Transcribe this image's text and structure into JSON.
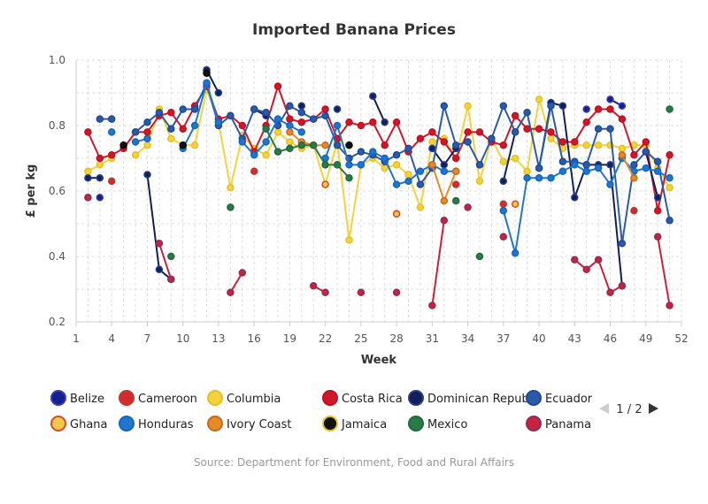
{
  "chart_data": {
    "type": "line",
    "title": "Imported Banana Prices",
    "xlabel": "Week",
    "ylabel": "£ per kg",
    "xlim": [
      1,
      52
    ],
    "ylim": [
      0.2,
      1.0
    ],
    "x_ticks": [
      "1",
      "4",
      "7",
      "10",
      "13",
      "16",
      "19",
      "22",
      "25",
      "28",
      "31",
      "34",
      "37",
      "40",
      "43",
      "46",
      "49",
      "52"
    ],
    "y_ticks": [
      "0.2",
      "0.4",
      "0.6",
      "0.8",
      "1.0"
    ],
    "grid": true,
    "legend_position": "bottom",
    "series": [
      {
        "name": "Belize",
        "color": "#14208f",
        "border": "#3b3bb0",
        "points": [
          [
            3,
            0.58
          ],
          [
            12,
            0.97
          ],
          [
            44,
            0.85
          ],
          [
            46,
            0.88
          ],
          [
            47,
            0.86
          ]
        ]
      },
      {
        "name": "Cameroon",
        "color": "#d12b32",
        "border": "#c0392b",
        "points": [
          [
            2,
            0.58
          ],
          [
            4,
            0.63
          ],
          [
            16,
            0.66
          ],
          [
            28,
            0.53
          ],
          [
            33,
            0.62
          ],
          [
            37,
            0.56
          ],
          [
            48,
            0.54
          ]
        ]
      },
      {
        "name": "Columbia",
        "color": "#f3d23d",
        "border": "#e6c11e",
        "points": [
          [
            2,
            0.66
          ],
          [
            3,
            0.68
          ],
          [
            4,
            0.7
          ],
          [
            6,
            0.71
          ],
          [
            7,
            0.74
          ],
          [
            8,
            0.85
          ],
          [
            9,
            0.76
          ],
          [
            10,
            0.74
          ],
          [
            11,
            0.74
          ],
          [
            12,
            0.91
          ],
          [
            13,
            0.81
          ],
          [
            14,
            0.61
          ],
          [
            15,
            0.77
          ],
          [
            16,
            0.73
          ],
          [
            17,
            0.71
          ],
          [
            18,
            0.78
          ],
          [
            19,
            0.75
          ],
          [
            20,
            0.73
          ],
          [
            21,
            0.74
          ],
          [
            22,
            0.62
          ],
          [
            23,
            0.75
          ],
          [
            24,
            0.45
          ],
          [
            25,
            0.68
          ],
          [
            26,
            0.7
          ],
          [
            27,
            0.67
          ],
          [
            28,
            0.68
          ],
          [
            29,
            0.65
          ],
          [
            30,
            0.55
          ],
          [
            31,
            0.75
          ],
          [
            32,
            0.76
          ],
          [
            33,
            0.7
          ],
          [
            34,
            0.86
          ],
          [
            35,
            0.63
          ],
          [
            36,
            0.76
          ],
          [
            37,
            0.69
          ],
          [
            38,
            0.7
          ],
          [
            39,
            0.66
          ],
          [
            40,
            0.88
          ],
          [
            41,
            0.76
          ],
          [
            42,
            0.73
          ],
          [
            43,
            0.74
          ],
          [
            44,
            0.74
          ],
          [
            45,
            0.74
          ],
          [
            46,
            0.74
          ],
          [
            47,
            0.73
          ],
          [
            48,
            0.74
          ],
          [
            49,
            0.74
          ],
          [
            50,
            0.67
          ],
          [
            51,
            0.61
          ]
        ]
      },
      {
        "name": "Costa Rica",
        "color": "#d0172a",
        "border": "#c01020",
        "points": [
          [
            2,
            0.78
          ],
          [
            3,
            0.7
          ],
          [
            4,
            0.71
          ],
          [
            5,
            0.73
          ],
          [
            6,
            0.78
          ],
          [
            7,
            0.78
          ],
          [
            8,
            0.83
          ],
          [
            9,
            0.84
          ],
          [
            10,
            0.79
          ],
          [
            11,
            0.86
          ],
          [
            12,
            0.92
          ],
          [
            13,
            0.82
          ],
          [
            14,
            0.83
          ],
          [
            15,
            0.8
          ],
          [
            16,
            0.72
          ],
          [
            17,
            0.8
          ],
          [
            18,
            0.92
          ],
          [
            19,
            0.82
          ],
          [
            20,
            0.81
          ],
          [
            21,
            0.82
          ],
          [
            22,
            0.85
          ],
          [
            23,
            0.76
          ],
          [
            24,
            0.81
          ],
          [
            25,
            0.8
          ],
          [
            26,
            0.81
          ],
          [
            27,
            0.74
          ],
          [
            28,
            0.81
          ],
          [
            29,
            0.72
          ],
          [
            30,
            0.76
          ],
          [
            31,
            0.78
          ],
          [
            32,
            0.75
          ],
          [
            33,
            0.7
          ],
          [
            34,
            0.78
          ],
          [
            35,
            0.78
          ],
          [
            36,
            0.75
          ],
          [
            37,
            0.74
          ],
          [
            38,
            0.83
          ],
          [
            39,
            0.79
          ],
          [
            40,
            0.79
          ],
          [
            41,
            0.78
          ],
          [
            42,
            0.75
          ],
          [
            43,
            0.75
          ],
          [
            44,
            0.81
          ],
          [
            45,
            0.85
          ],
          [
            46,
            0.85
          ],
          [
            47,
            0.82
          ],
          [
            48,
            0.71
          ],
          [
            49,
            0.75
          ],
          [
            50,
            0.54
          ],
          [
            51,
            0.71
          ]
        ]
      },
      {
        "name": "Dominican Republic",
        "color": "#10205a",
        "border": "#2a3a8a",
        "points": [
          [
            2,
            0.64
          ],
          [
            3,
            0.64
          ],
          [
            7,
            0.65
          ],
          [
            8,
            0.36
          ],
          [
            9,
            0.33
          ],
          [
            12,
            0.97
          ],
          [
            13,
            0.9
          ],
          [
            16,
            0.85
          ],
          [
            17,
            0.83
          ],
          [
            20,
            0.86
          ],
          [
            23,
            0.85
          ],
          [
            26,
            0.89
          ],
          [
            27,
            0.81
          ],
          [
            31,
            0.73
          ],
          [
            32,
            0.68
          ],
          [
            33,
            0.73
          ],
          [
            35,
            0.68
          ],
          [
            37,
            0.63
          ],
          [
            38,
            0.78
          ],
          [
            40,
            0.67
          ],
          [
            41,
            0.87
          ],
          [
            42,
            0.86
          ],
          [
            43,
            0.58
          ],
          [
            44,
            0.68
          ],
          [
            45,
            0.68
          ],
          [
            46,
            0.68
          ],
          [
            47,
            0.31
          ],
          [
            49,
            0.72
          ],
          [
            50,
            0.58
          ]
        ]
      },
      {
        "name": "Ecuador",
        "color": "#2b5aa8",
        "border": "#1f4a96",
        "points": [
          [
            3,
            0.82
          ],
          [
            4,
            0.82
          ],
          [
            6,
            0.78
          ],
          [
            7,
            0.81
          ],
          [
            8,
            0.84
          ],
          [
            9,
            0.79
          ],
          [
            10,
            0.85
          ],
          [
            11,
            0.85
          ],
          [
            12,
            0.93
          ],
          [
            13,
            0.8
          ],
          [
            14,
            0.83
          ],
          [
            15,
            0.76
          ],
          [
            16,
            0.85
          ],
          [
            17,
            0.84
          ],
          [
            18,
            0.8
          ],
          [
            19,
            0.86
          ],
          [
            20,
            0.84
          ],
          [
            21,
            0.82
          ],
          [
            22,
            0.83
          ],
          [
            23,
            0.74
          ],
          [
            24,
            0.7
          ],
          [
            25,
            0.72
          ],
          [
            26,
            0.71
          ],
          [
            27,
            0.69
          ],
          [
            28,
            0.71
          ],
          [
            29,
            0.73
          ],
          [
            30,
            0.62
          ],
          [
            31,
            0.67
          ],
          [
            32,
            0.86
          ],
          [
            33,
            0.74
          ],
          [
            34,
            0.75
          ],
          [
            35,
            0.68
          ],
          [
            36,
            0.76
          ],
          [
            37,
            0.86
          ],
          [
            38,
            0.78
          ],
          [
            39,
            0.84
          ],
          [
            40,
            0.67
          ],
          [
            41,
            0.86
          ],
          [
            42,
            0.69
          ],
          [
            43,
            0.69
          ],
          [
            44,
            0.68
          ],
          [
            45,
            0.79
          ],
          [
            46,
            0.79
          ],
          [
            47,
            0.44
          ],
          [
            48,
            0.68
          ],
          [
            49,
            0.72
          ],
          [
            50,
            0.69
          ],
          [
            51,
            0.51
          ]
        ]
      },
      {
        "name": "Ghana",
        "color": "#f3c84a",
        "border": "#d64a2a",
        "points": [
          [
            22,
            0.62
          ],
          [
            28,
            0.53
          ],
          [
            38,
            0.56
          ]
        ]
      },
      {
        "name": "Honduras",
        "color": "#1f76cc",
        "border": "#1565c0",
        "points": [
          [
            4,
            0.78
          ],
          [
            6,
            0.75
          ],
          [
            7,
            0.76
          ],
          [
            10,
            0.73
          ],
          [
            11,
            0.8
          ],
          [
            12,
            0.93
          ],
          [
            13,
            0.81
          ],
          [
            15,
            0.75
          ],
          [
            16,
            0.71
          ],
          [
            17,
            0.75
          ],
          [
            18,
            0.82
          ],
          [
            19,
            0.8
          ],
          [
            20,
            0.78
          ],
          [
            22,
            0.7
          ],
          [
            23,
            0.8
          ],
          [
            24,
            0.68
          ],
          [
            25,
            0.68
          ],
          [
            26,
            0.72
          ],
          [
            27,
            0.7
          ],
          [
            28,
            0.62
          ],
          [
            29,
            0.63
          ],
          [
            30,
            0.66
          ],
          [
            31,
            0.68
          ],
          [
            32,
            0.66
          ],
          [
            33,
            0.66
          ],
          [
            37,
            0.54
          ],
          [
            38,
            0.41
          ],
          [
            39,
            0.64
          ],
          [
            40,
            0.64
          ],
          [
            41,
            0.64
          ],
          [
            42,
            0.66
          ],
          [
            43,
            0.68
          ],
          [
            44,
            0.66
          ],
          [
            45,
            0.67
          ],
          [
            46,
            0.62
          ],
          [
            47,
            0.7
          ],
          [
            48,
            0.66
          ],
          [
            49,
            0.67
          ],
          [
            50,
            0.66
          ],
          [
            51,
            0.64
          ]
        ]
      },
      {
        "name": "Ivory Coast",
        "color": "#e38a2a",
        "border": "#c86a1a",
        "points": [
          [
            19,
            0.78
          ],
          [
            20,
            0.75
          ],
          [
            21,
            0.74
          ],
          [
            22,
            0.74
          ],
          [
            31,
            0.68
          ],
          [
            32,
            0.57
          ],
          [
            33,
            0.66
          ],
          [
            47,
            0.71
          ],
          [
            48,
            0.64
          ]
        ]
      },
      {
        "name": "Jamaica",
        "color": "#111111",
        "border": "#000000",
        "points": [
          [
            5,
            0.74
          ],
          [
            10,
            0.74
          ],
          [
            12,
            0.96
          ],
          [
            24,
            0.74
          ]
        ]
      },
      {
        "name": "Mexico",
        "color": "#2a7a48",
        "border": "#1e6a3a",
        "points": [
          [
            9,
            0.4
          ],
          [
            14,
            0.55
          ],
          [
            17,
            0.79
          ],
          [
            18,
            0.72
          ],
          [
            19,
            0.73
          ],
          [
            20,
            0.74
          ],
          [
            21,
            0.74
          ],
          [
            22,
            0.68
          ],
          [
            23,
            0.68
          ],
          [
            24,
            0.64
          ],
          [
            33,
            0.57
          ],
          [
            35,
            0.4
          ],
          [
            51,
            0.85
          ]
        ]
      },
      {
        "name": "Panama",
        "color": "#c8233a",
        "border": "#8a2f5c",
        "points": [
          [
            2,
            0.58
          ],
          [
            8,
            0.44
          ],
          [
            9,
            0.33
          ],
          [
            14,
            0.29
          ],
          [
            15,
            0.35
          ],
          [
            21,
            0.31
          ],
          [
            22,
            0.29
          ],
          [
            25,
            0.29
          ],
          [
            28,
            0.29
          ],
          [
            31,
            0.25
          ],
          [
            32,
            0.51
          ],
          [
            34,
            0.55
          ],
          [
            37,
            0.46
          ],
          [
            43,
            0.39
          ],
          [
            44,
            0.36
          ],
          [
            45,
            0.39
          ],
          [
            46,
            0.29
          ],
          [
            47,
            0.31
          ],
          [
            50,
            0.46
          ],
          [
            51,
            0.25
          ]
        ]
      }
    ]
  },
  "legend": {
    "items": [
      {
        "label": "Belize",
        "color": "#14208f",
        "border": "#3b3bb0"
      },
      {
        "label": "Cameroon",
        "color": "#d12b32",
        "border": "#c0392b"
      },
      {
        "label": "Columbia",
        "color": "#f3d23d",
        "border": "#e6c11e"
      },
      {
        "label": "Costa Rica",
        "color": "#d0172a",
        "border": "#c01020"
      },
      {
        "label": "Dominican Republic",
        "color": "#10205a",
        "border": "#2a3a8a"
      },
      {
        "label": "Ecuador",
        "color": "#2b5aa8",
        "border": "#1f4a96"
      },
      {
        "label": "Ghana",
        "color": "#f3c84a",
        "border": "#d64a2a"
      },
      {
        "label": "Honduras",
        "color": "#1f76cc",
        "border": "#1565c0"
      },
      {
        "label": "Ivory Coast",
        "color": "#e38a2a",
        "border": "#c86a1a"
      },
      {
        "label": "Jamaica",
        "color": "#111111",
        "border": "#e6c11e"
      },
      {
        "label": "Mexico",
        "color": "#2a7a48",
        "border": "#1e6a3a"
      },
      {
        "label": "Panama",
        "color": "#c8233a",
        "border": "#8a2f5c"
      }
    ],
    "pager_text": "1 / 2",
    "prev_icon": "triangle-left",
    "next_icon": "triangle-right"
  },
  "source": "Source: Department for Environment, Food and Rural Affairs"
}
